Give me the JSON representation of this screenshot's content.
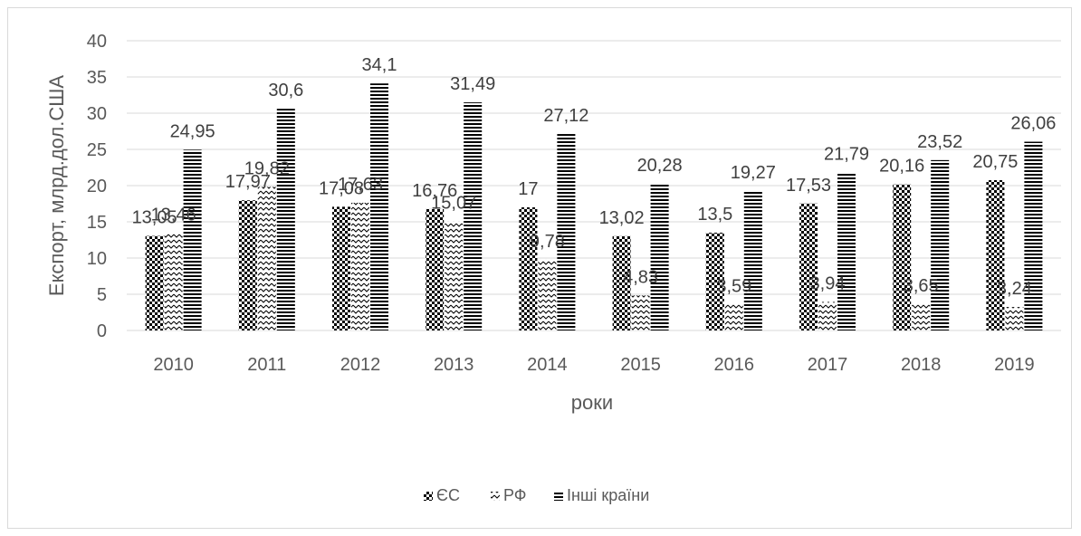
{
  "chart_data": {
    "type": "bar",
    "title": "",
    "xlabel": "роки",
    "ylabel": "Експорт, млрд.дол.США",
    "ylim": [
      0,
      40
    ],
    "yticks": [
      0,
      5,
      10,
      15,
      20,
      25,
      30,
      35,
      40
    ],
    "grid": true,
    "legend_position": "bottom",
    "categories": [
      "2010",
      "2011",
      "2012",
      "2013",
      "2014",
      "2015",
      "2016",
      "2017",
      "2018",
      "2019"
    ],
    "series": [
      {
        "name": "ЄС",
        "pattern": "checker",
        "color": "#000000",
        "values": [
          13.05,
          17.97,
          17.08,
          16.76,
          17,
          13.02,
          13.5,
          17.53,
          20.16,
          20.75
        ],
        "labels": [
          "13,05",
          "17,97",
          "17,08",
          "16,76",
          "17",
          "13,02",
          "13,5",
          "17,53",
          "20,16",
          "20,75"
        ]
      },
      {
        "name": "РФ",
        "pattern": "zigzag",
        "color": "#000000",
        "values": [
          13.46,
          19.82,
          17.63,
          15.07,
          9.78,
          4.83,
          3.59,
          3.94,
          3.65,
          3.24
        ],
        "labels": [
          "13,46",
          "19,82",
          "17,63",
          "15,07",
          "9,78",
          "4,83",
          "3,59",
          "3,94",
          "3,65",
          "3,24"
        ]
      },
      {
        "name": "Інші країни",
        "pattern": "horizontal-stripes",
        "color": "#000000",
        "values": [
          24.95,
          30.6,
          34.1,
          31.49,
          27.12,
          20.28,
          19.27,
          21.79,
          23.52,
          26.06
        ],
        "labels": [
          "24,95",
          "30,6",
          "34,1",
          "31,49",
          "27,12",
          "20,28",
          "19,27",
          "21,79",
          "23,52",
          "26,06"
        ]
      }
    ]
  }
}
